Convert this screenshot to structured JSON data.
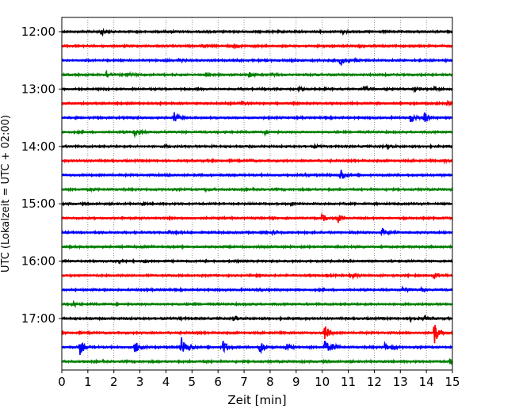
{
  "chart_data": {
    "type": "line",
    "title": "",
    "xlabel": "Zeit  [min]",
    "ylabel": "UTC (Lokalzeit = UTC + 02:00)",
    "xlim": [
      0,
      15
    ],
    "x_ticks": [
      0,
      1,
      2,
      3,
      4,
      5,
      6,
      7,
      8,
      9,
      10,
      11,
      12,
      13,
      14,
      15
    ],
    "y_tick_labels": [
      "12:00",
      "13:00",
      "14:00",
      "15:00",
      "16:00",
      "17:00"
    ],
    "y_tick_trace_index": [
      0,
      4,
      8,
      12,
      16,
      20
    ],
    "grid": "vertical dotted",
    "color_cycle": [
      "#000000",
      "#ff0000",
      "#0000ff",
      "#008000"
    ],
    "traces": [
      {
        "start": "12:00",
        "color": "#000000",
        "events": [
          [
            1.5,
            0.5
          ],
          [
            10.8,
            0.25
          ],
          [
            4.2,
            0.15
          ]
        ]
      },
      {
        "start": "12:15",
        "color": "#ff0000",
        "events": [
          [
            6.6,
            0.3
          ],
          [
            5.4,
            0.15
          ],
          [
            11.4,
            0.15
          ]
        ]
      },
      {
        "start": "12:30",
        "color": "#0000ff",
        "events": [
          [
            10.7,
            0.8
          ],
          [
            4.5,
            0.2
          ],
          [
            11.3,
            0.15
          ]
        ]
      },
      {
        "start": "12:45",
        "color": "#008000",
        "events": [
          [
            1.7,
            0.6
          ],
          [
            2.5,
            0.3
          ],
          [
            7.2,
            0.4
          ],
          [
            8.1,
            0.2
          ]
        ]
      },
      {
        "start": "13:00",
        "color": "#000000",
        "events": [
          [
            11.6,
            0.4
          ],
          [
            13.5,
            0.35
          ],
          [
            14.3,
            0.25
          ],
          [
            9.1,
            0.2
          ]
        ]
      },
      {
        "start": "13:15",
        "color": "#ff0000",
        "events": [
          [
            6.9,
            0.25
          ],
          [
            14.8,
            0.2
          ]
        ]
      },
      {
        "start": "13:30",
        "color": "#0000ff",
        "events": [
          [
            4.3,
            0.9
          ],
          [
            13.4,
            0.8
          ],
          [
            13.9,
            0.9
          ]
        ]
      },
      {
        "start": "13:45",
        "color": "#008000",
        "events": [
          [
            2.8,
            0.65
          ],
          [
            7.8,
            0.3
          ]
        ]
      },
      {
        "start": "14:00",
        "color": "#000000",
        "events": [
          [
            12.5,
            0.35
          ],
          [
            4.0,
            0.15
          ],
          [
            9.7,
            0.15
          ]
        ]
      },
      {
        "start": "14:15",
        "color": "#ff0000",
        "events": [
          [
            7.2,
            0.15
          ],
          [
            14.7,
            0.15
          ]
        ]
      },
      {
        "start": "14:30",
        "color": "#0000ff",
        "events": [
          [
            10.7,
            1.0
          ],
          [
            4.1,
            0.2
          ],
          [
            9.2,
            0.15
          ]
        ]
      },
      {
        "start": "14:45",
        "color": "#008000",
        "events": [
          [
            5.5,
            0.25
          ],
          [
            1.1,
            0.15
          ]
        ]
      },
      {
        "start": "15:00",
        "color": "#000000",
        "events": [
          [
            8.8,
            0.2
          ],
          [
            3.1,
            0.15
          ]
        ]
      },
      {
        "start": "15:15",
        "color": "#ff0000",
        "events": [
          [
            10.0,
            0.55
          ],
          [
            10.6,
            0.7
          ]
        ]
      },
      {
        "start": "15:30",
        "color": "#0000ff",
        "events": [
          [
            12.3,
            0.6
          ],
          [
            8.1,
            0.2
          ],
          [
            4.1,
            0.15
          ]
        ]
      },
      {
        "start": "15:45",
        "color": "#008000",
        "events": [
          [
            3.0,
            0.1
          ]
        ]
      },
      {
        "start": "16:00",
        "color": "#000000",
        "events": [
          [
            2.2,
            0.3
          ],
          [
            3.2,
            0.2
          ]
        ]
      },
      {
        "start": "16:15",
        "color": "#ff0000",
        "events": [
          [
            11.2,
            0.35
          ],
          [
            14.3,
            0.4
          ],
          [
            10.2,
            0.15
          ]
        ]
      },
      {
        "start": "16:30",
        "color": "#0000ff",
        "events": [
          [
            13.1,
            0.35
          ],
          [
            13.8,
            0.3
          ],
          [
            7.5,
            0.15
          ]
        ]
      },
      {
        "start": "16:45",
        "color": "#008000",
        "events": [
          [
            0.4,
            0.35
          ]
        ]
      },
      {
        "start": "17:00",
        "color": "#000000",
        "events": [
          [
            6.6,
            0.45
          ],
          [
            13.4,
            0.35
          ],
          [
            13.9,
            0.3
          ],
          [
            4.5,
            0.15
          ]
        ]
      },
      {
        "start": "17:15",
        "color": "#ff0000",
        "events": [
          [
            10.1,
            1.3
          ],
          [
            14.3,
            1.8
          ]
        ]
      },
      {
        "start": "17:30",
        "color": "#0000ff",
        "events": [
          [
            0.7,
            1.0
          ],
          [
            2.8,
            1.1
          ],
          [
            4.6,
            1.3
          ],
          [
            4.9,
            0.5
          ],
          [
            6.2,
            1.0
          ],
          [
            7.6,
            1.2
          ],
          [
            8.6,
            0.6
          ],
          [
            10.1,
            1.2
          ],
          [
            10.4,
            0.5
          ],
          [
            12.4,
            0.5
          ],
          [
            12.7,
            0.3
          ]
        ]
      },
      {
        "start": "17:45",
        "color": "#008000",
        "events": [
          [
            14.9,
            0.35
          ],
          [
            5.5,
            0.1
          ]
        ]
      }
    ]
  }
}
